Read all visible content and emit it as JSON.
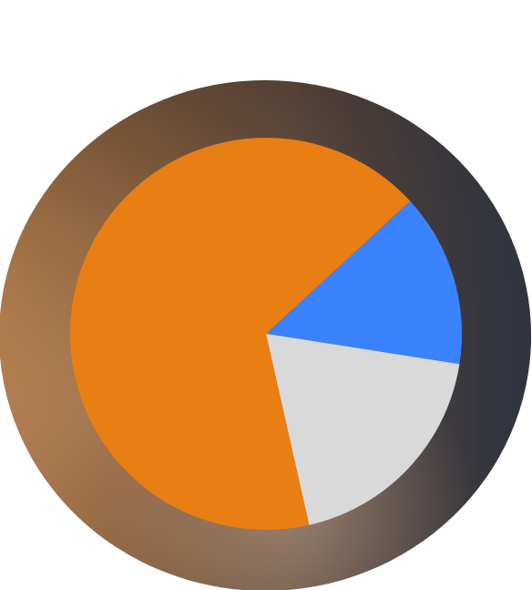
{
  "chart_data": {
    "type": "pie",
    "title": "",
    "legend": "none",
    "start_angle_deg": 42.6,
    "direction": "clockwise",
    "series": [
      {
        "values": [
          0.143,
          0.19,
          0.667
        ],
        "colors": [
          "#3b82ff",
          "#d9d9d9",
          "#e97e12"
        ]
      }
    ]
  },
  "decor": {
    "ring_colors": [
      "#a0693a",
      "#c58e5a",
      "#5c524d",
      "#303846"
    ]
  }
}
